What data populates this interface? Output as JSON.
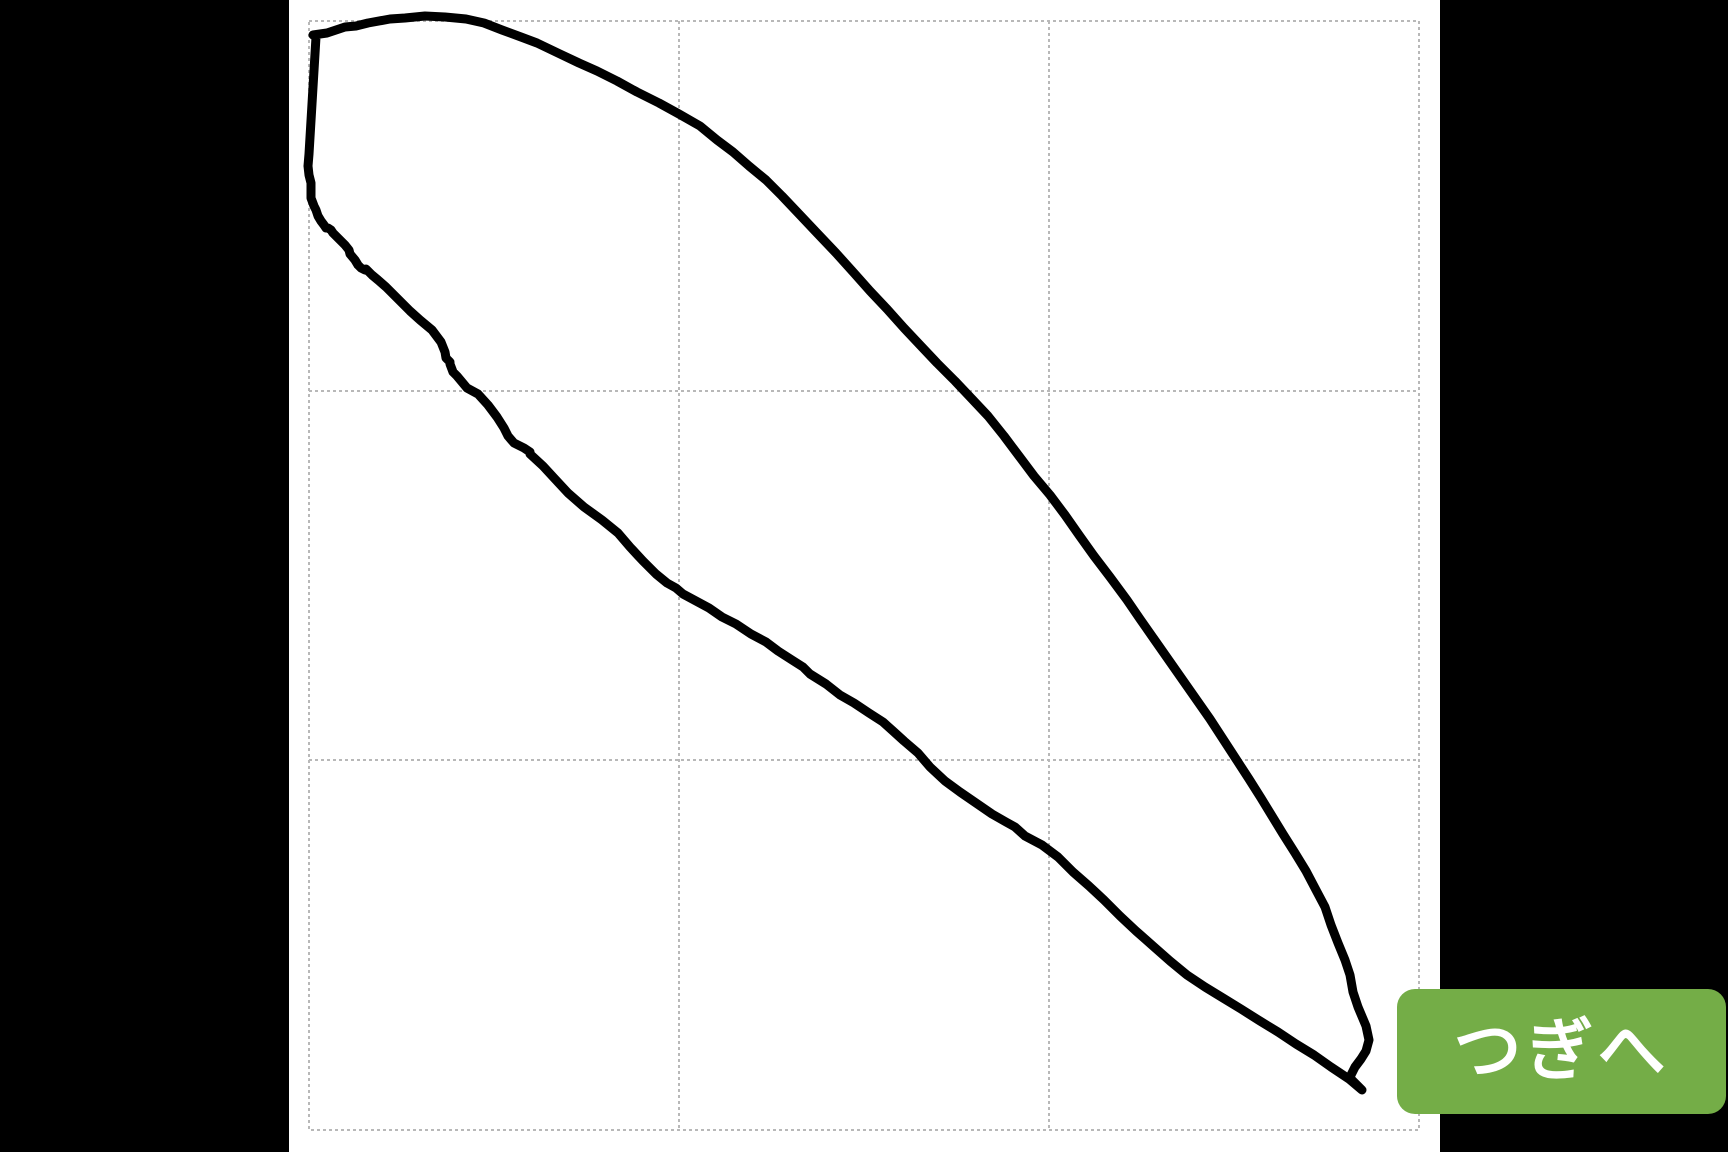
{
  "colors": {
    "background": "#000000",
    "paper": "#ffffff",
    "grid_line": "#b8b8b8",
    "stroke": "#000000",
    "button": "#74ad47",
    "button_text": "#ffffff"
  },
  "grid": {
    "rows": 3,
    "cols": 3,
    "style": "dotted"
  },
  "next_button": {
    "label": "つぎへ"
  }
}
